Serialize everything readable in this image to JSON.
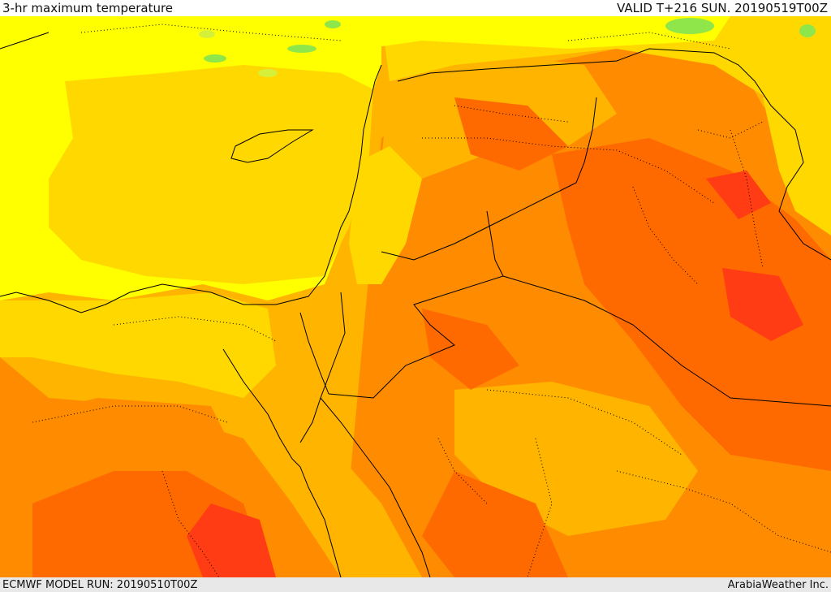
{
  "header": {
    "title": "3-hr maximum temperature",
    "valid": "VALID T+216 SUN. 20190519T00Z"
  },
  "footer": {
    "model_run": "ECMWF MODEL RUN: 20190510T00Z",
    "credit": "ArabiaWeather Inc."
  },
  "colors": {
    "green": "#8ee64a",
    "yellow_green": "#d6f03a",
    "yellow": "#ffff00",
    "gold": "#ffd800",
    "amber": "#ffb400",
    "orange": "#ff8c00",
    "orange_red": "#ff6a00",
    "red": "#ff3c14",
    "border": "#000000"
  }
}
